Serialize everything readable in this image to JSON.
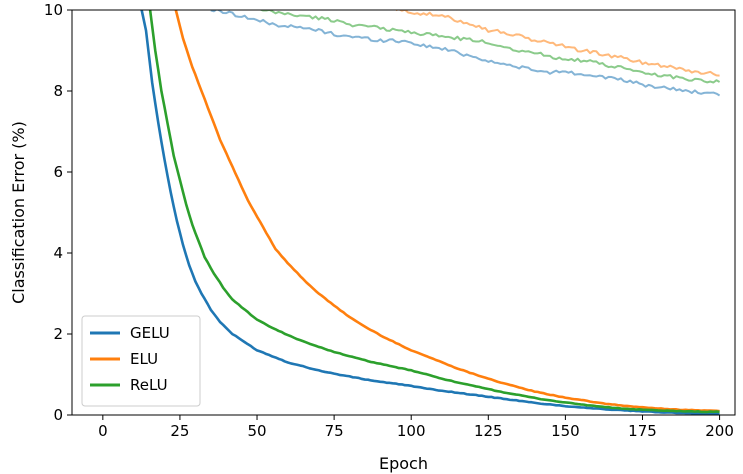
{
  "chart_data": {
    "type": "line",
    "xlabel": "Epoch",
    "ylabel": "Classification Error (%)",
    "xlim": [
      -10,
      205
    ],
    "ylim": [
      0,
      10
    ],
    "xticks": [
      0,
      25,
      50,
      75,
      100,
      125,
      150,
      175,
      200
    ],
    "yticks": [
      0,
      2,
      4,
      6,
      8,
      10
    ],
    "legend_position": "lower-left",
    "grid": false,
    "series": [
      {
        "name": "GELU",
        "role": "train",
        "color": "#1f77b4",
        "points": [
          [
            12,
            10.2
          ],
          [
            14,
            9.5
          ],
          [
            16,
            8.2
          ],
          [
            18,
            7.2
          ],
          [
            20,
            6.3
          ],
          [
            22,
            5.5
          ],
          [
            24,
            4.8
          ],
          [
            26,
            4.2
          ],
          [
            28,
            3.7
          ],
          [
            30,
            3.3
          ],
          [
            32,
            3.0
          ],
          [
            35,
            2.6
          ],
          [
            38,
            2.3
          ],
          [
            42,
            2.0
          ],
          [
            46,
            1.8
          ],
          [
            50,
            1.6
          ],
          [
            55,
            1.45
          ],
          [
            60,
            1.3
          ],
          [
            65,
            1.2
          ],
          [
            70,
            1.1
          ],
          [
            75,
            1.02
          ],
          [
            80,
            0.95
          ],
          [
            85,
            0.88
          ],
          [
            90,
            0.82
          ],
          [
            95,
            0.77
          ],
          [
            100,
            0.72
          ],
          [
            105,
            0.65
          ],
          [
            110,
            0.6
          ],
          [
            115,
            0.55
          ],
          [
            120,
            0.5
          ],
          [
            125,
            0.45
          ],
          [
            130,
            0.4
          ],
          [
            135,
            0.35
          ],
          [
            140,
            0.3
          ],
          [
            145,
            0.26
          ],
          [
            150,
            0.22
          ],
          [
            155,
            0.19
          ],
          [
            160,
            0.16
          ],
          [
            165,
            0.13
          ],
          [
            170,
            0.11
          ],
          [
            175,
            0.09
          ],
          [
            180,
            0.07
          ],
          [
            185,
            0.06
          ],
          [
            190,
            0.05
          ],
          [
            195,
            0.04
          ],
          [
            200,
            0.04
          ]
        ]
      },
      {
        "name": "ELU",
        "role": "train",
        "color": "#ff7f0e",
        "points": [
          [
            23,
            10.2
          ],
          [
            26,
            9.3
          ],
          [
            29,
            8.6
          ],
          [
            32,
            8.0
          ],
          [
            35,
            7.4
          ],
          [
            38,
            6.8
          ],
          [
            41,
            6.3
          ],
          [
            44,
            5.8
          ],
          [
            47,
            5.3
          ],
          [
            50,
            4.9
          ],
          [
            53,
            4.5
          ],
          [
            56,
            4.1
          ],
          [
            60,
            3.75
          ],
          [
            65,
            3.35
          ],
          [
            70,
            3.0
          ],
          [
            75,
            2.7
          ],
          [
            80,
            2.42
          ],
          [
            85,
            2.18
          ],
          [
            90,
            1.97
          ],
          [
            95,
            1.78
          ],
          [
            100,
            1.6
          ],
          [
            105,
            1.45
          ],
          [
            110,
            1.3
          ],
          [
            115,
            1.15
          ],
          [
            120,
            1.02
          ],
          [
            125,
            0.9
          ],
          [
            130,
            0.78
          ],
          [
            135,
            0.68
          ],
          [
            140,
            0.58
          ],
          [
            145,
            0.5
          ],
          [
            150,
            0.43
          ],
          [
            155,
            0.37
          ],
          [
            160,
            0.31
          ],
          [
            165,
            0.26
          ],
          [
            170,
            0.22
          ],
          [
            175,
            0.19
          ],
          [
            180,
            0.16
          ],
          [
            185,
            0.14
          ],
          [
            190,
            0.12
          ],
          [
            195,
            0.11
          ],
          [
            200,
            0.1
          ]
        ]
      },
      {
        "name": "ReLU",
        "role": "train",
        "color": "#2ca02c",
        "points": [
          [
            15,
            10.2
          ],
          [
            17,
            9.0
          ],
          [
            19,
            8.0
          ],
          [
            21,
            7.2
          ],
          [
            23,
            6.4
          ],
          [
            25,
            5.8
          ],
          [
            27,
            5.2
          ],
          [
            29,
            4.7
          ],
          [
            31,
            4.3
          ],
          [
            33,
            3.9
          ],
          [
            36,
            3.5
          ],
          [
            39,
            3.15
          ],
          [
            42,
            2.85
          ],
          [
            46,
            2.6
          ],
          [
            50,
            2.35
          ],
          [
            55,
            2.15
          ],
          [
            60,
            1.97
          ],
          [
            65,
            1.82
          ],
          [
            70,
            1.68
          ],
          [
            75,
            1.56
          ],
          [
            80,
            1.45
          ],
          [
            85,
            1.35
          ],
          [
            90,
            1.26
          ],
          [
            95,
            1.18
          ],
          [
            100,
            1.1
          ],
          [
            105,
            1.0
          ],
          [
            110,
            0.9
          ],
          [
            115,
            0.8
          ],
          [
            120,
            0.72
          ],
          [
            125,
            0.64
          ],
          [
            130,
            0.56
          ],
          [
            135,
            0.49
          ],
          [
            140,
            0.42
          ],
          [
            145,
            0.36
          ],
          [
            150,
            0.31
          ],
          [
            155,
            0.26
          ],
          [
            160,
            0.22
          ],
          [
            165,
            0.18
          ],
          [
            170,
            0.15
          ],
          [
            175,
            0.13
          ],
          [
            180,
            0.11
          ],
          [
            185,
            0.1
          ],
          [
            190,
            0.09
          ],
          [
            195,
            0.08
          ],
          [
            200,
            0.08
          ]
        ]
      },
      {
        "name": "GELU",
        "role": "test",
        "color": "#1f77b4",
        "points": [
          [
            35,
            10.0
          ],
          [
            40,
            9.95
          ],
          [
            45,
            9.85
          ],
          [
            50,
            9.75
          ],
          [
            55,
            9.65
          ],
          [
            60,
            9.6
          ],
          [
            65,
            9.55
          ],
          [
            70,
            9.5
          ],
          [
            75,
            9.4
          ],
          [
            80,
            9.35
          ],
          [
            85,
            9.3
          ],
          [
            90,
            9.25
          ],
          [
            95,
            9.25
          ],
          [
            100,
            9.2
          ],
          [
            105,
            9.1
          ],
          [
            110,
            9.05
          ],
          [
            115,
            8.95
          ],
          [
            120,
            8.85
          ],
          [
            125,
            8.75
          ],
          [
            130,
            8.65
          ],
          [
            135,
            8.6
          ],
          [
            140,
            8.5
          ],
          [
            145,
            8.45
          ],
          [
            150,
            8.5
          ],
          [
            155,
            8.4
          ],
          [
            160,
            8.4
          ],
          [
            165,
            8.3
          ],
          [
            170,
            8.25
          ],
          [
            175,
            8.15
          ],
          [
            180,
            8.1
          ],
          [
            185,
            8.05
          ],
          [
            190,
            8.0
          ],
          [
            195,
            7.95
          ],
          [
            200,
            7.9
          ]
        ]
      },
      {
        "name": "ELU",
        "role": "test",
        "color": "#ff7f0e",
        "points": [
          [
            95,
            10.0
          ],
          [
            100,
            9.95
          ],
          [
            105,
            9.9
          ],
          [
            110,
            9.85
          ],
          [
            115,
            9.75
          ],
          [
            120,
            9.65
          ],
          [
            125,
            9.5
          ],
          [
            130,
            9.45
          ],
          [
            135,
            9.35
          ],
          [
            140,
            9.25
          ],
          [
            145,
            9.2
          ],
          [
            150,
            9.1
          ],
          [
            155,
            9.0
          ],
          [
            160,
            8.95
          ],
          [
            165,
            8.85
          ],
          [
            170,
            8.8
          ],
          [
            175,
            8.7
          ],
          [
            180,
            8.65
          ],
          [
            185,
            8.6
          ],
          [
            190,
            8.5
          ],
          [
            195,
            8.45
          ],
          [
            200,
            8.4
          ]
        ]
      },
      {
        "name": "ReLU",
        "role": "test",
        "color": "#2ca02c",
        "points": [
          [
            50,
            10.0
          ],
          [
            55,
            9.95
          ],
          [
            60,
            9.9
          ],
          [
            65,
            9.85
          ],
          [
            70,
            9.8
          ],
          [
            75,
            9.75
          ],
          [
            80,
            9.65
          ],
          [
            85,
            9.6
          ],
          [
            90,
            9.55
          ],
          [
            95,
            9.5
          ],
          [
            100,
            9.45
          ],
          [
            105,
            9.4
          ],
          [
            110,
            9.35
          ],
          [
            115,
            9.3
          ],
          [
            120,
            9.25
          ],
          [
            125,
            9.2
          ],
          [
            130,
            9.1
          ],
          [
            135,
            9.0
          ],
          [
            140,
            8.95
          ],
          [
            145,
            8.85
          ],
          [
            150,
            8.8
          ],
          [
            155,
            8.75
          ],
          [
            160,
            8.7
          ],
          [
            165,
            8.6
          ],
          [
            170,
            8.55
          ],
          [
            175,
            8.45
          ],
          [
            180,
            8.4
          ],
          [
            185,
            8.35
          ],
          [
            190,
            8.3
          ],
          [
            195,
            8.25
          ],
          [
            200,
            8.25
          ]
        ]
      }
    ]
  }
}
